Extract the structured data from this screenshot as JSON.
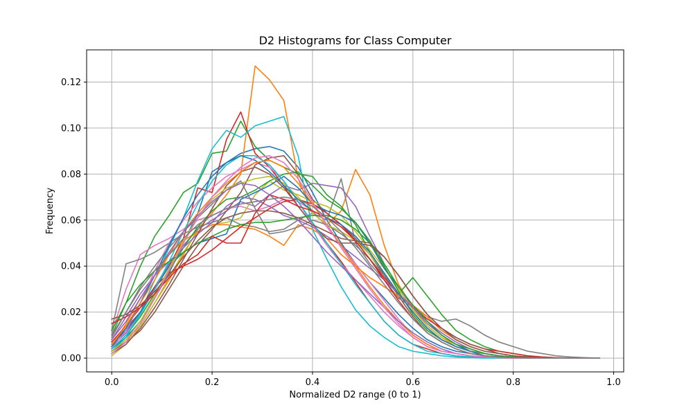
{
  "chart_data": {
    "type": "line",
    "title": "D2 Histograms for Class Computer",
    "xlabel": "Normalized D2 range (0 to 1)",
    "ylabel": "Frequency",
    "xlim": [
      -0.05,
      1.02
    ],
    "ylim": [
      -0.006,
      0.134
    ],
    "xticks": [
      0.0,
      0.2,
      0.4,
      0.6,
      0.8,
      1.0
    ],
    "xtick_labels": [
      "0.0",
      "0.2",
      "0.4",
      "0.6",
      "0.8",
      "1.0"
    ],
    "yticks": [
      0.0,
      0.02,
      0.04,
      0.06,
      0.08,
      0.1,
      0.12
    ],
    "ytick_labels": [
      "0.00",
      "0.02",
      "0.04",
      "0.06",
      "0.08",
      "0.10",
      "0.12"
    ],
    "grid": true,
    "legend": "none",
    "x": [
      0.0,
      0.0286,
      0.0571,
      0.0857,
      0.1143,
      0.1429,
      0.1714,
      0.2,
      0.2286,
      0.2571,
      0.2857,
      0.3143,
      0.3429,
      0.3714,
      0.4,
      0.4286,
      0.4571,
      0.4857,
      0.5143,
      0.5429,
      0.5714,
      0.6,
      0.6286,
      0.6571,
      0.6857,
      0.7143,
      0.7429,
      0.7714,
      0.8,
      0.8286,
      0.8571,
      0.8857,
      0.9143,
      0.9429,
      0.9714
    ],
    "series": [
      {
        "color": "#1f77b4",
        "values": [
          0.004,
          0.009,
          0.016,
          0.026,
          0.037,
          0.05,
          0.063,
          0.081,
          0.085,
          0.089,
          0.091,
          0.092,
          0.09,
          0.083,
          0.072,
          0.06,
          0.05,
          0.041,
          0.033,
          0.026,
          0.019,
          0.013,
          0.008,
          0.005,
          0.003,
          0.002,
          0.001,
          0.0005,
          0.0002,
          0.0001,
          0.0,
          0.0,
          0.0,
          0.0,
          0.0
        ]
      },
      {
        "color": "#ff7f0e",
        "values": [
          0.003,
          0.008,
          0.014,
          0.024,
          0.034,
          0.045,
          0.056,
          0.063,
          0.071,
          0.08,
          0.127,
          0.121,
          0.112,
          0.078,
          0.063,
          0.058,
          0.064,
          0.082,
          0.071,
          0.049,
          0.032,
          0.022,
          0.014,
          0.009,
          0.006,
          0.003,
          0.002,
          0.001,
          0.0005,
          0.0002,
          0.0001,
          0.0,
          0.0,
          0.0,
          0.0
        ]
      },
      {
        "color": "#2ca02c",
        "values": [
          0.01,
          0.024,
          0.04,
          0.053,
          0.062,
          0.072,
          0.076,
          0.089,
          0.09,
          0.103,
          0.092,
          0.086,
          0.083,
          0.08,
          0.079,
          0.071,
          0.066,
          0.058,
          0.046,
          0.036,
          0.028,
          0.035,
          0.027,
          0.019,
          0.012,
          0.008,
          0.005,
          0.003,
          0.002,
          0.001,
          0.0005,
          0.0002,
          0.0,
          0.0,
          0.0
        ]
      },
      {
        "color": "#d62728",
        "values": [
          0.006,
          0.013,
          0.02,
          0.03,
          0.04,
          0.052,
          0.074,
          0.072,
          0.095,
          0.107,
          0.089,
          0.083,
          0.075,
          0.066,
          0.058,
          0.05,
          0.042,
          0.033,
          0.024,
          0.016,
          0.01,
          0.006,
          0.004,
          0.002,
          0.001,
          0.0005,
          0.0002,
          0.0001,
          0.0,
          0.0,
          0.0,
          0.0,
          0.0,
          0.0,
          0.0
        ]
      },
      {
        "color": "#9467bd",
        "values": [
          0.005,
          0.011,
          0.02,
          0.031,
          0.041,
          0.049,
          0.056,
          0.06,
          0.064,
          0.068,
          0.066,
          0.071,
          0.075,
          0.073,
          0.076,
          0.075,
          0.074,
          0.066,
          0.053,
          0.041,
          0.031,
          0.022,
          0.015,
          0.01,
          0.006,
          0.004,
          0.002,
          0.001,
          0.0005,
          0.0002,
          0.0,
          0.0,
          0.0,
          0.0,
          0.0
        ]
      },
      {
        "color": "#8c564b",
        "values": [
          0.003,
          0.007,
          0.012,
          0.02,
          0.03,
          0.04,
          0.049,
          0.056,
          0.064,
          0.072,
          0.084,
          0.087,
          0.088,
          0.08,
          0.069,
          0.063,
          0.058,
          0.052,
          0.045,
          0.036,
          0.027,
          0.018,
          0.011,
          0.007,
          0.004,
          0.002,
          0.001,
          0.0005,
          0.0002,
          0.0,
          0.0,
          0.0,
          0.0,
          0.0,
          0.0
        ]
      },
      {
        "color": "#e377c2",
        "values": [
          0.011,
          0.03,
          0.045,
          0.049,
          0.052,
          0.056,
          0.06,
          0.062,
          0.065,
          0.066,
          0.064,
          0.066,
          0.069,
          0.068,
          0.064,
          0.057,
          0.049,
          0.041,
          0.033,
          0.025,
          0.017,
          0.01,
          0.006,
          0.003,
          0.002,
          0.001,
          0.0005,
          0.0002,
          0.0,
          0.0,
          0.0,
          0.0,
          0.0,
          0.0,
          0.0
        ]
      },
      {
        "color": "#7f7f7f",
        "values": [
          0.012,
          0.041,
          0.043,
          0.046,
          0.05,
          0.054,
          0.057,
          0.059,
          0.061,
          0.058,
          0.057,
          0.055,
          0.056,
          0.06,
          0.063,
          0.06,
          0.078,
          0.05,
          0.041,
          0.034,
          0.026,
          0.022,
          0.018,
          0.016,
          0.017,
          0.014,
          0.01,
          0.007,
          0.005,
          0.003,
          0.002,
          0.001,
          0.0005,
          0.0002,
          0.0
        ]
      },
      {
        "color": "#bcbd22",
        "values": [
          0.001,
          0.006,
          0.014,
          0.024,
          0.035,
          0.046,
          0.055,
          0.058,
          0.059,
          0.061,
          0.071,
          0.077,
          0.073,
          0.071,
          0.068,
          0.066,
          0.062,
          0.055,
          0.047,
          0.039,
          0.03,
          0.021,
          0.014,
          0.009,
          0.005,
          0.003,
          0.001,
          0.0005,
          0.0002,
          0.0,
          0.0,
          0.0,
          0.0,
          0.0,
          0.0
        ]
      },
      {
        "color": "#17becf",
        "values": [
          0.003,
          0.009,
          0.02,
          0.034,
          0.048,
          0.061,
          0.077,
          0.091,
          0.099,
          0.096,
          0.101,
          0.103,
          0.105,
          0.088,
          0.056,
          0.043,
          0.031,
          0.021,
          0.014,
          0.009,
          0.005,
          0.003,
          0.002,
          0.001,
          0.0005,
          0.0002,
          0.0,
          0.0,
          0.0,
          0.0,
          0.0,
          0.0,
          0.0,
          0.0,
          0.0
        ]
      },
      {
        "color": "#1f77b4",
        "values": [
          0.006,
          0.012,
          0.02,
          0.03,
          0.04,
          0.046,
          0.05,
          0.052,
          0.054,
          0.069,
          0.072,
          0.075,
          0.079,
          0.074,
          0.067,
          0.064,
          0.062,
          0.059,
          0.05,
          0.039,
          0.031,
          0.023,
          0.016,
          0.01,
          0.006,
          0.003,
          0.002,
          0.001,
          0.0005,
          0.0002,
          0.0,
          0.0,
          0.0,
          0.0,
          0.0
        ]
      },
      {
        "color": "#ff7f0e",
        "values": [
          0.005,
          0.015,
          0.026,
          0.036,
          0.045,
          0.051,
          0.055,
          0.058,
          0.058,
          0.057,
          0.056,
          0.053,
          0.049,
          0.058,
          0.056,
          0.052,
          0.045,
          0.04,
          0.035,
          0.031,
          0.027,
          0.023,
          0.018,
          0.012,
          0.008,
          0.005,
          0.003,
          0.002,
          0.001,
          0.0005,
          0.0002,
          0.0,
          0.0,
          0.0,
          0.0
        ]
      },
      {
        "color": "#2ca02c",
        "values": [
          0.004,
          0.01,
          0.018,
          0.028,
          0.038,
          0.048,
          0.057,
          0.064,
          0.069,
          0.07,
          0.073,
          0.077,
          0.08,
          0.081,
          0.075,
          0.069,
          0.065,
          0.059,
          0.051,
          0.04,
          0.029,
          0.019,
          0.012,
          0.008,
          0.005,
          0.003,
          0.001,
          0.0005,
          0.0002,
          0.0,
          0.0,
          0.0,
          0.0,
          0.0,
          0.0
        ]
      },
      {
        "color": "#d62728",
        "values": [
          0.007,
          0.014,
          0.022,
          0.031,
          0.037,
          0.04,
          0.043,
          0.047,
          0.052,
          0.057,
          0.061,
          0.065,
          0.068,
          0.069,
          0.067,
          0.063,
          0.058,
          0.051,
          0.043,
          0.035,
          0.028,
          0.022,
          0.017,
          0.013,
          0.009,
          0.006,
          0.004,
          0.003,
          0.002,
          0.001,
          0.0005,
          0.0002,
          0.0,
          0.0,
          0.0
        ]
      },
      {
        "color": "#9467bd",
        "values": [
          0.008,
          0.018,
          0.028,
          0.036,
          0.042,
          0.048,
          0.054,
          0.059,
          0.066,
          0.07,
          0.069,
          0.066,
          0.062,
          0.06,
          0.057,
          0.053,
          0.049,
          0.044,
          0.039,
          0.034,
          0.028,
          0.022,
          0.016,
          0.011,
          0.007,
          0.004,
          0.002,
          0.001,
          0.0005,
          0.0002,
          0.0,
          0.0,
          0.0,
          0.0,
          0.0
        ]
      },
      {
        "color": "#8c564b",
        "values": [
          0.002,
          0.006,
          0.013,
          0.022,
          0.032,
          0.043,
          0.054,
          0.065,
          0.075,
          0.081,
          0.083,
          0.08,
          0.074,
          0.066,
          0.058,
          0.052,
          0.05,
          0.05,
          0.049,
          0.044,
          0.036,
          0.027,
          0.019,
          0.013,
          0.009,
          0.006,
          0.004,
          0.002,
          0.001,
          0.0005,
          0.0002,
          0.0,
          0.0,
          0.0,
          0.0
        ]
      },
      {
        "color": "#e377c2",
        "values": [
          0.004,
          0.012,
          0.024,
          0.038,
          0.05,
          0.06,
          0.068,
          0.074,
          0.079,
          0.082,
          0.085,
          0.083,
          0.077,
          0.068,
          0.058,
          0.049,
          0.041,
          0.034,
          0.027,
          0.02,
          0.014,
          0.009,
          0.005,
          0.003,
          0.002,
          0.001,
          0.0005,
          0.0002,
          0.0,
          0.0,
          0.0,
          0.0,
          0.0,
          0.0,
          0.0
        ]
      },
      {
        "color": "#7f7f7f",
        "values": [
          0.009,
          0.02,
          0.031,
          0.04,
          0.048,
          0.055,
          0.061,
          0.067,
          0.073,
          0.077,
          0.065,
          0.054,
          0.055,
          0.057,
          0.06,
          0.058,
          0.054,
          0.049,
          0.043,
          0.036,
          0.028,
          0.02,
          0.013,
          0.008,
          0.005,
          0.003,
          0.002,
          0.001,
          0.0005,
          0.0002,
          0.0,
          0.0,
          0.0,
          0.0,
          0.0
        ]
      },
      {
        "color": "#bcbd22",
        "values": [
          0.003,
          0.008,
          0.016,
          0.027,
          0.039,
          0.051,
          0.061,
          0.069,
          0.074,
          0.076,
          0.078,
          0.079,
          0.076,
          0.07,
          0.063,
          0.058,
          0.055,
          0.051,
          0.045,
          0.037,
          0.028,
          0.02,
          0.013,
          0.008,
          0.005,
          0.003,
          0.001,
          0.0005,
          0.0002,
          0.0,
          0.0,
          0.0,
          0.0,
          0.0,
          0.0
        ]
      },
      {
        "color": "#17becf",
        "values": [
          0.004,
          0.01,
          0.019,
          0.03,
          0.042,
          0.055,
          0.067,
          0.077,
          0.084,
          0.088,
          0.088,
          0.084,
          0.077,
          0.068,
          0.059,
          0.05,
          0.041,
          0.032,
          0.024,
          0.016,
          0.01,
          0.006,
          0.003,
          0.002,
          0.001,
          0.0005,
          0.0002,
          0.0,
          0.0,
          0.0,
          0.0,
          0.0,
          0.0,
          0.0,
          0.0
        ]
      },
      {
        "color": "#1f77b4",
        "values": [
          0.005,
          0.013,
          0.024,
          0.036,
          0.049,
          0.061,
          0.071,
          0.079,
          0.085,
          0.088,
          0.086,
          0.081,
          0.075,
          0.069,
          0.064,
          0.061,
          0.058,
          0.053,
          0.046,
          0.037,
          0.028,
          0.02,
          0.013,
          0.008,
          0.005,
          0.003,
          0.001,
          0.0005,
          0.0002,
          0.0,
          0.0,
          0.0,
          0.0,
          0.0,
          0.0
        ]
      },
      {
        "color": "#ff7f0e",
        "values": [
          0.006,
          0.014,
          0.024,
          0.034,
          0.045,
          0.055,
          0.063,
          0.07,
          0.076,
          0.081,
          0.085,
          0.086,
          0.083,
          0.076,
          0.067,
          0.058,
          0.049,
          0.04,
          0.031,
          0.023,
          0.016,
          0.01,
          0.006,
          0.003,
          0.002,
          0.001,
          0.0005,
          0.0002,
          0.0,
          0.0,
          0.0,
          0.0,
          0.0,
          0.0,
          0.0
        ]
      },
      {
        "color": "#2ca02c",
        "values": [
          0.012,
          0.024,
          0.032,
          0.038,
          0.042,
          0.046,
          0.05,
          0.053,
          0.056,
          0.058,
          0.059,
          0.059,
          0.06,
          0.061,
          0.062,
          0.062,
          0.06,
          0.056,
          0.05,
          0.041,
          0.031,
          0.023,
          0.016,
          0.01,
          0.006,
          0.004,
          0.002,
          0.001,
          0.0005,
          0.0002,
          0.0,
          0.0,
          0.0,
          0.0,
          0.0
        ]
      },
      {
        "color": "#d62728",
        "values": [
          0.015,
          0.018,
          0.022,
          0.028,
          0.035,
          0.041,
          0.045,
          0.053,
          0.05,
          0.05,
          0.063,
          0.071,
          0.069,
          0.066,
          0.064,
          0.061,
          0.057,
          0.051,
          0.043,
          0.034,
          0.025,
          0.017,
          0.011,
          0.007,
          0.004,
          0.002,
          0.001,
          0.0005,
          0.0002,
          0.0,
          0.0,
          0.0,
          0.0,
          0.0,
          0.0
        ]
      },
      {
        "color": "#9467bd",
        "values": [
          0.008,
          0.016,
          0.026,
          0.036,
          0.046,
          0.055,
          0.062,
          0.068,
          0.073,
          0.076,
          0.075,
          0.071,
          0.066,
          0.06,
          0.053,
          0.046,
          0.04,
          0.034,
          0.028,
          0.022,
          0.016,
          0.011,
          0.007,
          0.004,
          0.002,
          0.001,
          0.0005,
          0.0002,
          0.0,
          0.0,
          0.0,
          0.0,
          0.0,
          0.0,
          0.0
        ]
      },
      {
        "color": "#8c564b",
        "values": [
          0.017,
          0.019,
          0.023,
          0.029,
          0.036,
          0.044,
          0.051,
          0.057,
          0.061,
          0.063,
          0.064,
          0.064,
          0.063,
          0.061,
          0.058,
          0.055,
          0.052,
          0.051,
          0.05,
          0.044,
          0.036,
          0.027,
          0.019,
          0.013,
          0.008,
          0.005,
          0.003,
          0.002,
          0.001,
          0.0005,
          0.0002,
          0.0,
          0.0,
          0.0,
          0.0
        ]
      },
      {
        "color": "#e377c2",
        "values": [
          0.002,
          0.007,
          0.015,
          0.026,
          0.038,
          0.05,
          0.061,
          0.07,
          0.077,
          0.083,
          0.087,
          0.088,
          0.085,
          0.078,
          0.068,
          0.058,
          0.048,
          0.039,
          0.03,
          0.022,
          0.015,
          0.009,
          0.005,
          0.003,
          0.002,
          0.001,
          0.0005,
          0.0002,
          0.0,
          0.0,
          0.0,
          0.0,
          0.0,
          0.0,
          0.0
        ]
      },
      {
        "color": "#7f7f7f",
        "values": [
          0.01,
          0.02,
          0.03,
          0.038,
          0.045,
          0.052,
          0.058,
          0.062,
          0.065,
          0.067,
          0.068,
          0.069,
          0.07,
          0.069,
          0.066,
          0.061,
          0.055,
          0.048,
          0.04,
          0.032,
          0.024,
          0.017,
          0.011,
          0.007,
          0.004,
          0.002,
          0.001,
          0.0005,
          0.0002,
          0.0,
          0.0,
          0.0,
          0.0,
          0.0,
          0.0
        ]
      }
    ]
  }
}
